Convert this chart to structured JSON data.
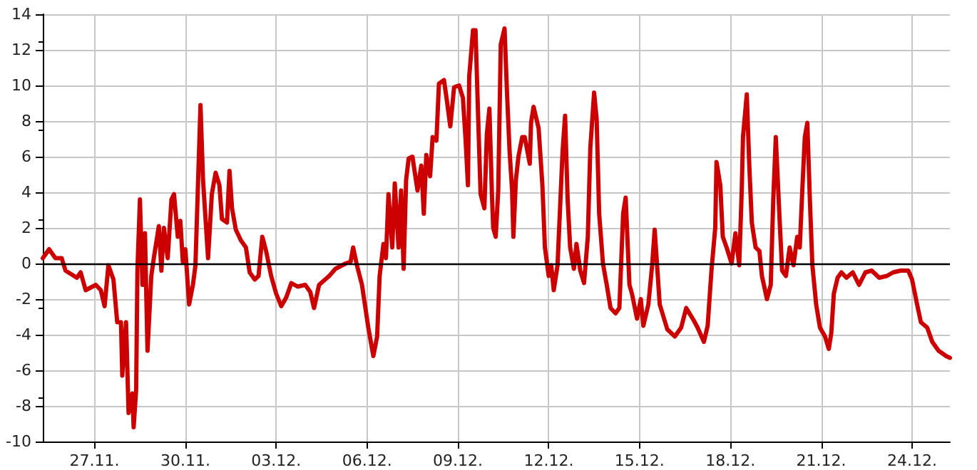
{
  "chart_data": {
    "type": "line",
    "x": [
      "--11-25T07:00",
      "--11-25T12:00",
      "--11-25T17:00",
      "--11-25T22:00",
      "--11-26T01:00",
      "--11-26T10:00",
      "--11-26T13:00",
      "--11-26T17:00",
      "--11-27T01:00",
      "--11-27T05:00",
      "--11-27T08:00",
      "--11-27T11:00",
      "--11-27T15:00",
      "--11-27T18:00",
      "--11-27T21:00",
      "--11-27T22:00",
      "--11-28T01:00",
      "--11-28T03:00",
      "--11-28T06:00",
      "--11-28T07:00",
      "--11-28T09:00",
      "--11-28T10:00",
      "--11-28T12:00",
      "--11-28T14:00",
      "--11-28T16:00",
      "--11-28T18:00",
      "--11-28T21:00",
      "--11-28T23:00",
      "--11-29T03:00",
      "--11-29T05:00",
      "--11-29T07:00",
      "--11-29T10:00",
      "--11-29T13:00",
      "--11-29T15:00",
      "--11-29T18:00",
      "--11-29T20:00",
      "--11-29T22:00",
      "--11-30T00:00",
      "--11-30T03:00",
      "--11-30T06:00",
      "--11-30T08:00",
      "--11-30T10:00",
      "--11-30T12:00",
      "--11-30T14:00",
      "--11-30T16:00",
      "--11-30T18:00",
      "--11-30T21:00",
      "--12-01T00:00",
      "--12-01T03:00",
      "--12-01T05:00",
      "--12-01T09:00",
      "--12-01T11:00",
      "--12-01T13:00",
      "--12-01T16:00",
      "--12-01T20:00",
      "--12-02T00:00",
      "--12-02T03:00",
      "--12-02T07:00",
      "--12-02T10:00",
      "--12-02T13:00",
      "--12-02T16:00",
      "--12-02T20:00",
      "--12-03T00:00",
      "--12-03T04:00",
      "--12-03T08:00",
      "--12-03T12:00",
      "--12-03T17:00",
      "--12-03T23:00",
      "--12-04T03:00",
      "--12-04T06:00",
      "--12-04T10:00",
      "--12-04T18:00",
      "--12-04T23:00",
      "--12-05T07:00",
      "--12-05T11:00",
      "--12-05T13:00",
      "--12-05T16:00",
      "--12-05T20:00",
      "--12-06T01:00",
      "--12-06T05:00",
      "--12-06T08:00",
      "--12-06T10:00",
      "--12-06T13:00",
      "--12-06T15:00",
      "--12-06T17:00",
      "--12-06T20:00",
      "--12-06T22:00",
      "--12-07T01:00",
      "--12-07T03:00",
      "--12-07T05:00",
      "--12-07T07:00",
      "--12-07T09:00",
      "--12-07T12:00",
      "--12-07T16:00",
      "--12-07T19:00",
      "--12-07T21:00",
      "--12-07T23:00",
      "--12-08T02:00",
      "--12-08T04:00",
      "--12-08T07:00",
      "--12-08T09:00",
      "--12-08T13:00",
      "--12-08T15:00",
      "--12-08T18:00",
      "--12-08T21:00",
      "--12-09T01:00",
      "--12-09T04:00",
      "--12-09T06:00",
      "--12-09T08:00",
      "--12-09T09:00",
      "--12-09T12:00",
      "--12-09T14:00",
      "--12-09T16:00",
      "--12-09T18:00",
      "--12-09T21:00",
      "--12-09T23:00",
      "--12-10T01:00",
      "--12-10T03:00",
      "--12-10T04:00",
      "--12-10T06:00",
      "--12-10T08:00",
      "--12-10T10:00",
      "--12-10T13:00",
      "--12-10T15:00",
      "--12-10T17:00",
      "--12-10T19:00",
      "--12-10T20:00",
      "--12-10T22:00",
      "--12-11T00:00",
      "--12-11T03:00",
      "--12-11T05:00",
      "--12-11T09:00",
      "--12-11T10:00",
      "--12-11T12:00",
      "--12-11T16:00",
      "--12-11T19:00",
      "--12-11T21:00",
      "--12-12T00:00",
      "--12-12T02:00",
      "--12-12T04:00",
      "--12-12T07:00",
      "--12-12T09:00",
      "--12-12T11:00",
      "--12-12T13:00",
      "--12-12T15:00",
      "--12-12T17:00",
      "--12-12T20:00",
      "--12-12T22:00",
      "--12-13T01:00",
      "--12-13T04:00",
      "--12-13T07:00",
      "--12-13T09:00",
      "--12-13T12:00",
      "--12-13T14:00",
      "--12-13T16:00",
      "--12-13T19:00",
      "--12-13T22:00",
      "--12-14T01:00",
      "--12-14T05:00",
      "--12-14T08:00",
      "--12-14T11:00",
      "--12-14T13:00",
      "--12-14T16:00",
      "--12-14T18:00",
      "--12-14T22:00",
      "--12-15T01:00",
      "--12-15T03:00",
      "--12-15T07:00",
      "--12-15T10:00",
      "--12-15T12:00",
      "--12-15T16:00",
      "--12-15T22:00",
      "--12-16T04:00",
      "--12-16T09:00",
      "--12-16T13:00",
      "--12-16T19:00",
      "--12-16T22:00",
      "--12-17T03:00",
      "--12-17T06:00",
      "--12-17T09:00",
      "--12-17T12:00",
      "--12-17T13:00",
      "--12-17T16:00",
      "--12-17T18:00",
      "--12-17T21:00",
      "--12-18T01:00",
      "--12-18T04:00",
      "--12-18T07:00",
      "--12-18T09:00",
      "--12-18T10:00",
      "--12-18T13:00",
      "--12-18T15:00",
      "--12-18T17:00",
      "--12-18T20:00",
      "--12-18T23:00",
      "--12-19T01:00",
      "--12-19T05:00",
      "--12-19T08:00",
      "--12-19T10:00",
      "--12-19T12:00",
      "--12-19T15:00",
      "--12-19T17:00",
      "--12-19T20:00",
      "--12-19T23:00",
      "--12-20T02:00",
      "--12-20T05:00",
      "--12-20T07:00",
      "--12-20T09:00",
      "--12-20T11:00",
      "--12-20T13:00",
      "--12-20T15:00",
      "--12-20T17:00",
      "--12-20T20:00",
      "--12-20T23:00",
      "--12-21T03:00",
      "--12-21T06:00",
      "--12-21T08:00",
      "--12-21T10:00",
      "--12-21T13:00",
      "--12-21T16:00",
      "--12-21T20:00",
      "--12-22T01:00",
      "--12-22T06:00",
      "--12-22T11:00",
      "--12-22T16:00",
      "--12-22T22:00",
      "--12-23T04:00",
      "--12-23T09:00",
      "--12-23T15:00",
      "--12-23T21:00",
      "--12-24T00:00",
      "--12-24T04:00",
      "--12-24T07:00",
      "--12-24T12:00",
      "--12-24T16:00",
      "--12-24T21:00",
      "--12-25T03:00",
      "--12-25T06:00"
    ],
    "series": [
      {
        "color": "#cc0000",
        "values": [
          0.3,
          0.8,
          0.3,
          0.3,
          -0.4,
          -0.8,
          -0.5,
          -1.5,
          -1.2,
          -1.5,
          -2.4,
          -0.1,
          -0.9,
          -3.3,
          -3.3,
          -6.3,
          -3.3,
          -8.4,
          -7.3,
          -9.2,
          -7.1,
          -0.4,
          3.6,
          -1.2,
          1.7,
          -4.9,
          -0.7,
          0.3,
          2.1,
          -0.4,
          2.0,
          0.3,
          3.6,
          3.9,
          1.5,
          2.4,
          0.1,
          0.8,
          -2.3,
          -1.2,
          -0.1,
          4.4,
          8.9,
          4.7,
          2.5,
          0.3,
          3.9,
          5.1,
          4.4,
          2.5,
          2.3,
          5.2,
          3.1,
          1.9,
          1.3,
          0.9,
          -0.5,
          -0.9,
          -0.7,
          1.5,
          0.7,
          -0.7,
          -1.7,
          -2.4,
          -1.9,
          -1.1,
          -1.3,
          -1.2,
          -1.6,
          -2.5,
          -1.2,
          -0.7,
          -0.3,
          0.0,
          0.1,
          0.9,
          -0.1,
          -1.2,
          -3.6,
          -5.2,
          -4.1,
          -0.7,
          1.1,
          0.3,
          3.9,
          0.9,
          4.5,
          0.9,
          4.1,
          -0.3,
          4.7,
          5.9,
          6.0,
          4.1,
          5.5,
          2.8,
          6.1,
          4.9,
          7.1,
          6.9,
          10.1,
          10.3,
          9.3,
          7.7,
          9.9,
          10.0,
          9.3,
          7.1,
          4.4,
          10.5,
          13.1,
          13.1,
          8.4,
          3.9,
          3.1,
          7.3,
          8.7,
          3.9,
          2.0,
          1.5,
          4.1,
          12.3,
          13.2,
          9.5,
          6.3,
          4.1,
          1.5,
          4.7,
          6.0,
          7.1,
          7.1,
          5.6,
          7.9,
          8.8,
          7.6,
          4.4,
          0.9,
          -0.7,
          -0.1,
          -1.5,
          -0.1,
          3.1,
          6.3,
          8.3,
          3.6,
          0.9,
          -0.3,
          1.1,
          -0.4,
          -1.1,
          1.5,
          6.5,
          9.6,
          8.1,
          2.8,
          0.0,
          -1.2,
          -2.5,
          -2.8,
          -2.5,
          2.8,
          3.7,
          -1.2,
          -1.7,
          -3.1,
          -2.0,
          -3.5,
          -2.3,
          -0.1,
          1.9,
          -2.3,
          -3.7,
          -4.1,
          -3.6,
          -2.5,
          -3.2,
          -3.6,
          -4.4,
          -3.5,
          -0.4,
          2.0,
          5.7,
          4.4,
          1.5,
          0.9,
          0.0,
          1.7,
          -0.1,
          4.1,
          7.1,
          9.5,
          5.5,
          2.3,
          0.9,
          0.7,
          -0.7,
          -2.0,
          -1.2,
          3.6,
          7.1,
          2.5,
          -0.4,
          -0.7,
          0.9,
          -0.1,
          1.5,
          0.9,
          4.1,
          7.1,
          7.9,
          3.6,
          -0.1,
          -2.3,
          -3.6,
          -4.1,
          -4.8,
          -3.9,
          -1.7,
          -0.8,
          -0.5,
          -0.8,
          -0.5,
          -1.2,
          -0.5,
          -0.4,
          -0.8,
          -0.7,
          -0.5,
          -0.4,
          -0.4,
          -0.9,
          -2.3,
          -3.3,
          -3.6,
          -4.4,
          -4.9,
          -5.2,
          -5.3
        ]
      }
    ],
    "xlim": [
      "--11-25T07:00",
      "--12-25T06:00"
    ],
    "xticks": [
      {
        "value": "--11-27",
        "label": "27.11."
      },
      {
        "value": "--11-30",
        "label": "30.11."
      },
      {
        "value": "--12-03",
        "label": "03.12."
      },
      {
        "value": "--12-06",
        "label": "06.12."
      },
      {
        "value": "--12-09",
        "label": "09.12."
      },
      {
        "value": "--12-12",
        "label": "12.12."
      },
      {
        "value": "--12-15",
        "label": "15.12."
      },
      {
        "value": "--12-18",
        "label": "18.12."
      },
      {
        "value": "--12-21",
        "label": "21.12."
      },
      {
        "value": "--12-24",
        "label": "24.12."
      }
    ],
    "ylim": [
      -10,
      14
    ],
    "yticks": [
      -10,
      -8,
      -6,
      -4,
      -2,
      0,
      2,
      4,
      6,
      8,
      10,
      12,
      14
    ],
    "ref_lines": [
      {
        "axis": "y",
        "value": 0,
        "color": "#000000"
      }
    ],
    "grid": true,
    "marker": "none",
    "line_style": "solid"
  }
}
